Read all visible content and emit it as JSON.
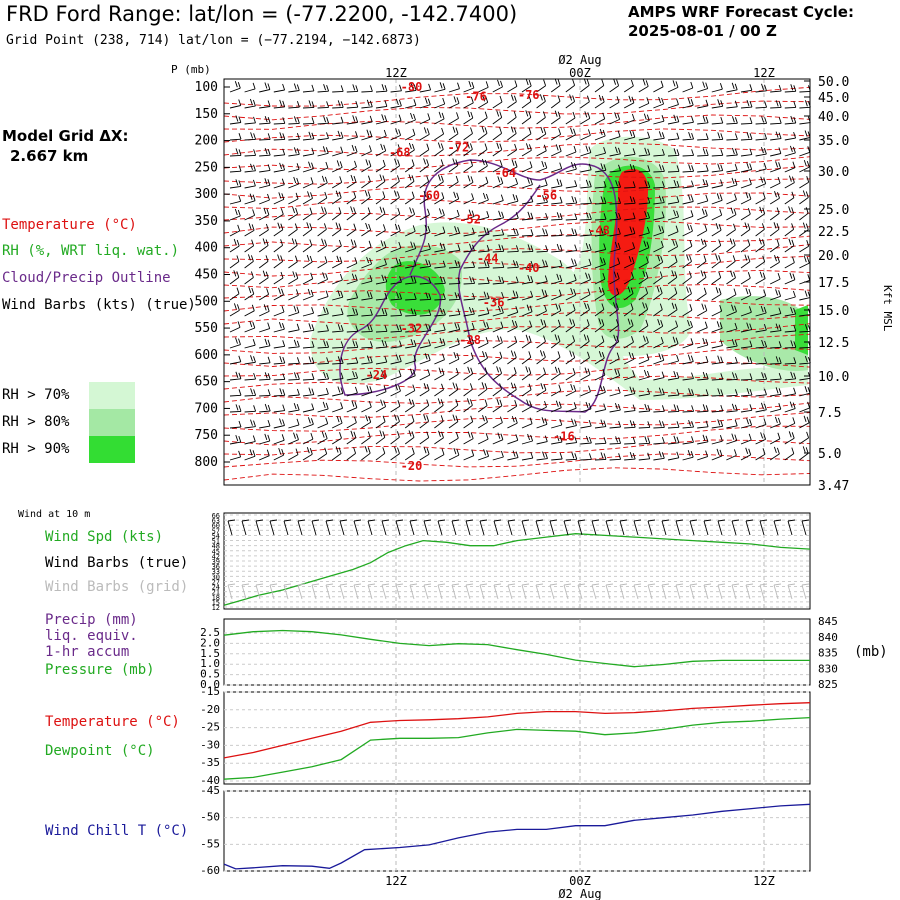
{
  "header": {
    "title": "FRD Ford Range:  lat/lon = (-77.2200, -142.7400)",
    "subtitle": "Grid Point (238, 714) lat/lon = (−77.2194, −142.6873)",
    "forecast_title": "AMPS WRF Forecast Cycle:",
    "forecast_cycle": "2025-08-01 / 00  Z"
  },
  "model_grid": {
    "label": "Model Grid ΔX:",
    "value": "2.667 km"
  },
  "time_axis": {
    "top_labels": [
      "12Z",
      "00Z",
      "12Z"
    ],
    "bottom_labels": [
      "12Z",
      "00Z",
      "12Z"
    ],
    "date_label": "Ø2 Aug"
  },
  "legend": {
    "temperature": "Temperature (°C)",
    "rh": "RH (%, WRT liq. wat.)",
    "cloud": "Cloud/Precip Outline",
    "wind": "Wind Barbs (kts) (true)",
    "rh70": "RH > 70%",
    "rh80": "RH > 80%",
    "rh90": "RH > 90%",
    "colors": {
      "temp": "#dd1111",
      "rh": "#22aa22",
      "cloud": "#6a2a8a",
      "rh70": "#d4f7d4",
      "rh80": "#a4e8a4",
      "rh90": "#33dd33",
      "red_core": "#ff1010",
      "wind_chill": "#1a1a9a"
    }
  },
  "chart_data": [
    {
      "type": "heatmap",
      "name": "cross-section",
      "ylabel_left": "P (mb)",
      "ylabel_right": "Kft MSL",
      "pressure_ticks": [
        "100",
        "150",
        "200",
        "250",
        "300",
        "350",
        "400",
        "450",
        "500",
        "550",
        "600",
        "650",
        "700",
        "750",
        "800"
      ],
      "kft_ticks": [
        "50.0",
        "45.0",
        "40.0",
        "35.0",
        "30.0",
        "25.0",
        "22.5",
        "20.0",
        "17.5",
        "15.0",
        "12.5",
        "10.0",
        "7.5",
        "5.0",
        "3.47"
      ],
      "temperature_labels": [
        {
          "t": 0.32,
          "p": 107,
          "v": "-80"
        },
        {
          "t": 0.43,
          "p": 125,
          "v": "-76"
        },
        {
          "t": 0.52,
          "p": 122,
          "v": "-76"
        },
        {
          "t": 0.3,
          "p": 230,
          "v": "-68"
        },
        {
          "t": 0.4,
          "p": 220,
          "v": "-72"
        },
        {
          "t": 0.48,
          "p": 268,
          "v": "-64"
        },
        {
          "t": 0.35,
          "p": 310,
          "v": "-60"
        },
        {
          "t": 0.55,
          "p": 310,
          "v": "-56"
        },
        {
          "t": 0.42,
          "p": 355,
          "v": "-52"
        },
        {
          "t": 0.64,
          "p": 375,
          "v": "-48"
        },
        {
          "t": 0.45,
          "p": 428,
          "v": "-44"
        },
        {
          "t": 0.52,
          "p": 445,
          "v": "-40"
        },
        {
          "t": 0.46,
          "p": 510,
          "v": "-36"
        },
        {
          "t": 0.32,
          "p": 558,
          "v": "-32"
        },
        {
          "t": 0.42,
          "p": 580,
          "v": "-28"
        },
        {
          "t": 0.26,
          "p": 645,
          "v": "-24"
        },
        {
          "t": 0.58,
          "p": 760,
          "v": "-16"
        },
        {
          "t": 0.32,
          "p": 815,
          "v": "-20"
        }
      ]
    },
    {
      "type": "line",
      "name": "wind-speed",
      "label_speed": "Wind Spd (kts)",
      "label_barbs_true": "Wind Barbs (true)",
      "label_barbs_grid": "Wind Barbs (grid)",
      "panel_title": "Wind at 10 m",
      "ylim": [
        12,
        66
      ],
      "y_ticks": [
        "66",
        "63",
        "60",
        "57",
        "54",
        "51",
        "48",
        "45",
        "42",
        "39",
        "36",
        "33",
        "30",
        "27",
        "24",
        "21",
        "18",
        "15",
        "12"
      ],
      "x": [
        0,
        0.03,
        0.06,
        0.1,
        0.14,
        0.18,
        0.22,
        0.25,
        0.28,
        0.31,
        0.34,
        0.38,
        0.42,
        0.46,
        0.5,
        0.55,
        0.6,
        0.65,
        0.7,
        0.75,
        0.8,
        0.85,
        0.9,
        0.95,
        1.0
      ],
      "values": [
        13,
        16,
        19,
        22,
        26,
        30,
        34,
        38,
        44,
        48,
        51,
        50,
        48,
        48,
        51,
        53,
        55,
        54,
        53,
        52,
        51,
        50,
        49,
        47,
        46
      ]
    },
    {
      "type": "line",
      "name": "precip-pressure",
      "label_precip": "Precip (mm)",
      "label_liq": "liq. equiv.",
      "label_accum": "1-hr accum",
      "label_pressure": "Pressure (mb)",
      "unit_right": "(mb)",
      "precip_ticks": [
        "2.5",
        "2.0",
        "1.5",
        "1.0",
        "0.5",
        "0.0"
      ],
      "pressure_ticks": [
        "845",
        "840",
        "835",
        "830",
        "825"
      ],
      "pressure_range": [
        825,
        845
      ],
      "x": [
        0,
        0.05,
        0.1,
        0.15,
        0.2,
        0.25,
        0.3,
        0.35,
        0.4,
        0.45,
        0.5,
        0.55,
        0.6,
        0.65,
        0.7,
        0.75,
        0.8,
        0.85,
        0.9,
        0.95,
        1.0
      ],
      "pressure": [
        840.5,
        841.6,
        842.0,
        841.6,
        840.6,
        839.2,
        837.9,
        837.2,
        837.8,
        837.5,
        835.9,
        834.4,
        832.6,
        831.5,
        830.5,
        831.2,
        832.2,
        832.5,
        832.5,
        832.5,
        832.5
      ]
    },
    {
      "type": "line",
      "name": "temperature-dewpoint",
      "label_temp": "Temperature (°C)",
      "label_dew": "Dewpoint (°C)",
      "ylim": [
        -40,
        -15
      ],
      "y_ticks": [
        "-15",
        "-20",
        "-25",
        "-30",
        "-35",
        "-40"
      ],
      "x": [
        0,
        0.05,
        0.1,
        0.15,
        0.2,
        0.25,
        0.3,
        0.35,
        0.4,
        0.45,
        0.5,
        0.55,
        0.6,
        0.65,
        0.7,
        0.75,
        0.8,
        0.85,
        0.9,
        0.95,
        1.0
      ],
      "temperature": [
        -33.5,
        -32,
        -30,
        -28,
        -26,
        -23.5,
        -23,
        -22.8,
        -22.5,
        -22,
        -21,
        -20.5,
        -20.5,
        -21,
        -20.8,
        -20.3,
        -19.6,
        -19.2,
        -18.7,
        -18.3,
        -18.0
      ],
      "dewpoint": [
        -39.5,
        -39,
        -37.5,
        -36,
        -34,
        -28.5,
        -28,
        -28,
        -27.8,
        -26.5,
        -25.5,
        -25.8,
        -26,
        -27,
        -26.5,
        -25.5,
        -24.3,
        -23.5,
        -23.2,
        -22.6,
        -22.2
      ]
    },
    {
      "type": "line",
      "name": "wind-chill",
      "label": "Wind Chill T (°C)",
      "ylim": [
        -60,
        -45
      ],
      "y_ticks": [
        "-45",
        "-50",
        "-55",
        "-60"
      ],
      "x": [
        0,
        0.02,
        0.05,
        0.1,
        0.15,
        0.18,
        0.2,
        0.24,
        0.3,
        0.35,
        0.4,
        0.45,
        0.5,
        0.55,
        0.6,
        0.65,
        0.7,
        0.75,
        0.8,
        0.85,
        0.9,
        0.95,
        1.0
      ],
      "values": [
        -58.7,
        -59.6,
        -59.4,
        -59,
        -59.1,
        -59.5,
        -58.5,
        -56,
        -55.6,
        -55.1,
        -53.8,
        -52.7,
        -52.2,
        -52.2,
        -51.5,
        -51.5,
        -50.5,
        -50,
        -49.5,
        -48.8,
        -48.3,
        -47.8,
        -47.5
      ]
    }
  ]
}
